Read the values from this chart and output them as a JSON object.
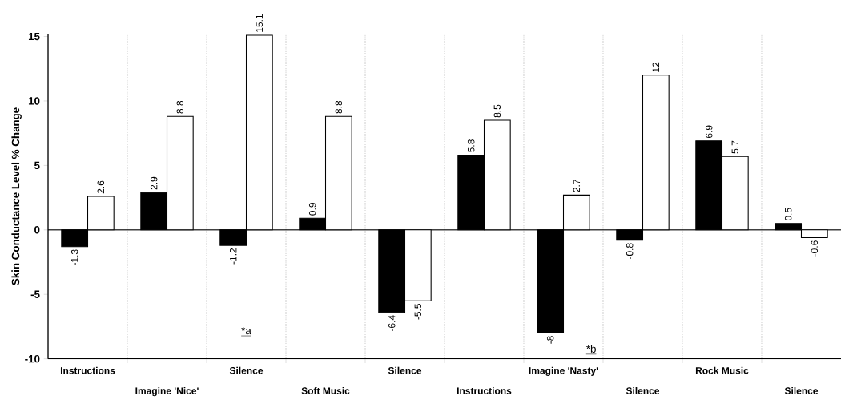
{
  "chart_data": {
    "type": "bar",
    "ylabel": "Skin Conductance Level % Change",
    "categories": [
      "Instructions",
      "Imagine 'Nice'",
      "Silence",
      "Soft Music",
      "Silence",
      "Instructions",
      "Imagine 'Nasty'",
      "Silence",
      "Rock Music",
      "Silence"
    ],
    "series": [
      {
        "color": "#000000",
        "values": [
          -1.3,
          2.9,
          -1.2,
          0.9,
          -6.4,
          5.8,
          -8,
          -0.8,
          6.9,
          0.5
        ]
      },
      {
        "color": "#ffffff",
        "values": [
          2.6,
          8.8,
          15.1,
          8.8,
          -5.5,
          8.5,
          2.7,
          12,
          5.7,
          -0.6
        ]
      }
    ],
    "ylim": [
      -10,
      15.2
    ],
    "yticks": [
      -10,
      -5,
      0,
      5,
      10,
      15
    ],
    "data_labels": true,
    "grid": "x",
    "annotations": [
      "*a",
      "*b"
    ]
  }
}
